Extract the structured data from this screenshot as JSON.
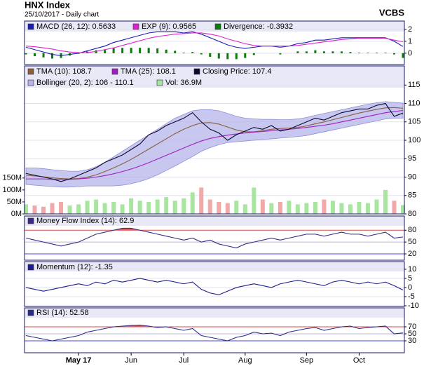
{
  "header": {
    "title": "HNX Index",
    "subtitle": "25/10/2017 - Daily chart",
    "brand": "VCBS"
  },
  "chart_data": [
    {
      "type": "line",
      "ylim": [
        -0.95,
        2.7
      ],
      "yticks": [
        0,
        1,
        2
      ],
      "grid": true,
      "series": [
        {
          "name": "MACD (26, 12): 0.5633",
          "color": "#1c1cb4",
          "values": [
            0.5,
            0.3,
            0.1,
            -0.1,
            -0.2,
            -0.1,
            0,
            0.2,
            0.4,
            0.6,
            0.9,
            1.1,
            1.3,
            1.5,
            1.7,
            1.8,
            1.8,
            1.8,
            1.7,
            1.8,
            1.6,
            1.3,
            1.0,
            0.7,
            0.5,
            0.4,
            0.5,
            0.6,
            0.6,
            0.5,
            0.6,
            0.8,
            0.9,
            1.1,
            1.1,
            1.2,
            1.3,
            1.3,
            1.3,
            1.3,
            1.3,
            1.3,
            1.0,
            0.5633
          ]
        },
        {
          "name": "EXP (9): 0.9565",
          "color": "#e020d0",
          "values": [
            0.6,
            0.55,
            0.45,
            0.35,
            0.2,
            0.1,
            0.05,
            0.05,
            0.15,
            0.3,
            0.45,
            0.65,
            0.85,
            1.05,
            1.25,
            1.4,
            1.5,
            1.6,
            1.65,
            1.7,
            1.7,
            1.6,
            1.45,
            1.2,
            1.0,
            0.8,
            0.65,
            0.6,
            0.6,
            0.6,
            0.6,
            0.65,
            0.75,
            0.85,
            0.95,
            1.05,
            1.15,
            1.2,
            1.25,
            1.25,
            1.25,
            1.25,
            1.1,
            0.9565
          ]
        },
        {
          "name": "Divergence: -0.3932",
          "color": "#0a7a0a",
          "type": "bar",
          "values": [
            -0.1,
            -0.25,
            -0.35,
            -0.45,
            -0.4,
            -0.2,
            -0.05,
            0.15,
            0.25,
            0.3,
            0.45,
            0.45,
            0.45,
            0.45,
            0.45,
            0.4,
            0.3,
            0.2,
            0.05,
            0.1,
            -0.1,
            -0.3,
            -0.45,
            -0.5,
            -0.5,
            -0.4,
            -0.15,
            0,
            0,
            -0.1,
            0,
            0.15,
            0.15,
            0.25,
            0.15,
            0.15,
            0.15,
            0.1,
            0.05,
            0.05,
            0.05,
            0.05,
            -0.1,
            -0.3932
          ]
        }
      ]
    },
    {
      "type": "line",
      "ylim": [
        80,
        120.2
      ],
      "yticks": [
        80,
        85,
        90,
        95,
        100,
        105,
        110,
        115
      ],
      "grid": true,
      "y2lim": [
        0,
        618
      ],
      "y2ticks": [
        {
          "value": 0,
          "label": "0M"
        },
        {
          "value": 50,
          "label": "50M"
        },
        {
          "value": 100,
          "label": "100M"
        },
        {
          "value": 150,
          "label": "150M"
        }
      ],
      "series": [
        {
          "name": "TMA (10): 108.7",
          "color": "#8b5e3c",
          "values": [
            90.5,
            90.3,
            90.1,
            89.8,
            89.6,
            89.5,
            89.6,
            90,
            90.6,
            91.5,
            92.5,
            93.6,
            94.8,
            96.2,
            97.6,
            99,
            100.4,
            101.8,
            103,
            104,
            104.7,
            104.8,
            104.4,
            103.6,
            102.8,
            102.3,
            102.3,
            102.6,
            103,
            103.2,
            103.3,
            103.5,
            103.9,
            104.5,
            105,
            105.6,
            106.2,
            106.8,
            107.4,
            107.9,
            108.4,
            108.8,
            108.9,
            108.7
          ]
        },
        {
          "name": "TMA (25): 108.1",
          "color": "#a020c0",
          "values": [
            89.5,
            89.5,
            89.5,
            89.4,
            89.4,
            89.4,
            89.5,
            89.7,
            90,
            90.4,
            90.9,
            91.5,
            92.2,
            93,
            93.9,
            94.9,
            95.9,
            96.9,
            97.9,
            98.9,
            99.8,
            100.5,
            101,
            101.4,
            101.7,
            102,
            102.2,
            102.4,
            102.6,
            102.8,
            103,
            103.2,
            103.5,
            103.8,
            104.1,
            104.5,
            105,
            105.5,
            106,
            106.5,
            107,
            107.5,
            107.8,
            108.1
          ]
        },
        {
          "name": "Closing Price: 107.4",
          "color": "#0a0a30",
          "values": [
            91,
            90.5,
            90,
            89.5,
            88.8,
            89.5,
            90.5,
            91.5,
            92.5,
            94,
            95,
            96,
            97.5,
            99,
            101.5,
            102.5,
            104,
            105,
            106,
            107.5,
            105,
            103,
            102,
            100,
            101.5,
            102.5,
            103.5,
            103,
            104,
            102.5,
            103,
            104,
            105,
            106,
            105.5,
            106.5,
            107.5,
            108,
            108.5,
            108.5,
            109.5,
            110,
            106.5,
            107.4
          ]
        },
        {
          "name": "Bollinger (20, 2): 106 - 110.1",
          "color": "#b4b4ea",
          "type": "band",
          "values": [
            92.5,
            92.5,
            92.3,
            92,
            91.8,
            91.6,
            91.6,
            92,
            92.8,
            94,
            95.5,
            97,
            98.5,
            100,
            101.5,
            103,
            104.5,
            106,
            107,
            108,
            108.3,
            108.3,
            108,
            107.3,
            106.5,
            106,
            105.8,
            105.7,
            105.7,
            105.6,
            105.6,
            105.8,
            106.2,
            106.8,
            107.3,
            107.8,
            108.3,
            108.8,
            109.3,
            109.8,
            110.2,
            110.5,
            110.3,
            110.1
          ],
          "lower": [
            88,
            87.8,
            87.6,
            87.4,
            87.3,
            87.3,
            87.4,
            87.6,
            87.6,
            87.6,
            87.6,
            87.8,
            88.2,
            88.8,
            89.6,
            90.6,
            91.8,
            93,
            94.3,
            95.6,
            97,
            98,
            98.8,
            99.4,
            99.6,
            99.8,
            100,
            100.2,
            100.4,
            100.6,
            100.8,
            101,
            101.3,
            101.8,
            102.3,
            102.8,
            103.3,
            103.8,
            104.3,
            104.8,
            105.3,
            105.8,
            106,
            106
          ]
        },
        {
          "name": "Vol: 36.9M",
          "color": "#a8e6a0",
          "up_color": "#a8e6a0",
          "down_color": "#f0a8a8",
          "type": "bar",
          "axis": "y2",
          "values": [
            40,
            35,
            30,
            45,
            50,
            35,
            40,
            55,
            60,
            45,
            50,
            40,
            65,
            55,
            50,
            60,
            70,
            55,
            65,
            90,
            110,
            60,
            50,
            45,
            55,
            40,
            110,
            60,
            45,
            50,
            55,
            40,
            45,
            50,
            60,
            55,
            45,
            40,
            50,
            45,
            60,
            100,
            55,
            36.9
          ]
        }
      ]
    },
    {
      "type": "line",
      "ylim": [
        4,
        116
      ],
      "yticks": [
        20,
        50,
        80
      ],
      "grid": true,
      "tick_line_colors": [
        "#4a4ad8",
        "#b8b8d8",
        "#d84a4a"
      ],
      "fill_above": 80,
      "fill_color": "#e05a5a",
      "series": [
        {
          "name": "Money Flow Index (14): 62.9",
          "color": "#3a2a8a",
          "values": [
            60,
            55,
            50,
            45,
            40,
            45,
            50,
            60,
            70,
            75,
            80,
            85,
            85,
            80,
            75,
            70,
            65,
            60,
            55,
            60,
            50,
            55,
            45,
            40,
            35,
            45,
            50,
            55,
            60,
            55,
            60,
            65,
            70,
            70,
            65,
            70,
            75,
            70,
            70,
            65,
            70,
            75,
            60,
            62.9
          ]
        }
      ]
    },
    {
      "type": "line",
      "ylim": [
        -10.4,
        14.2
      ],
      "yticks": [
        -10,
        -5,
        0,
        5,
        10
      ],
      "grid": true,
      "series": [
        {
          "name": "Momentum (12): -1.35",
          "color": "#1c1c8c",
          "values": [
            0,
            -1,
            -2,
            -1,
            0,
            1,
            2,
            1,
            3,
            2,
            4,
            3,
            4,
            5,
            4,
            3,
            4,
            3,
            2,
            3,
            -1,
            -3,
            -4,
            -2,
            0,
            1,
            2,
            1,
            0,
            2,
            3,
            4,
            3,
            2,
            1,
            3,
            4,
            3,
            2,
            3,
            2,
            3,
            1,
            -1.35
          ]
        }
      ]
    },
    {
      "type": "line",
      "ylim": [
        -4,
        124
      ],
      "yticks": [
        30,
        50,
        70
      ],
      "grid": true,
      "tick_line_colors": [
        "#4a4ad8",
        "#b8b8d8",
        "#d84a4a"
      ],
      "fill_above": 70,
      "fill_color": "#e05a5a",
      "categories": [
        null,
        null,
        null,
        null,
        null,
        null,
        "May 17",
        null,
        null,
        null,
        null,
        null,
        "Jun",
        null,
        null,
        null,
        null,
        null,
        "Jul",
        null,
        null,
        null,
        null,
        null,
        null,
        "Aug",
        null,
        null,
        null,
        null,
        null,
        null,
        "Sep",
        null,
        null,
        null,
        null,
        null,
        "Oct",
        null,
        null,
        null,
        null,
        null
      ],
      "series": [
        {
          "name": "RSI (14): 52.58",
          "color": "#2a2a8a",
          "values": [
            45,
            40,
            35,
            30,
            35,
            40,
            45,
            55,
            60,
            65,
            70,
            72,
            74,
            75,
            72,
            68,
            70,
            65,
            60,
            65,
            45,
            40,
            35,
            30,
            40,
            45,
            55,
            50,
            52,
            45,
            55,
            60,
            65,
            68,
            60,
            65,
            70,
            72,
            65,
            68,
            70,
            72,
            50,
            52.58
          ]
        }
      ]
    }
  ]
}
